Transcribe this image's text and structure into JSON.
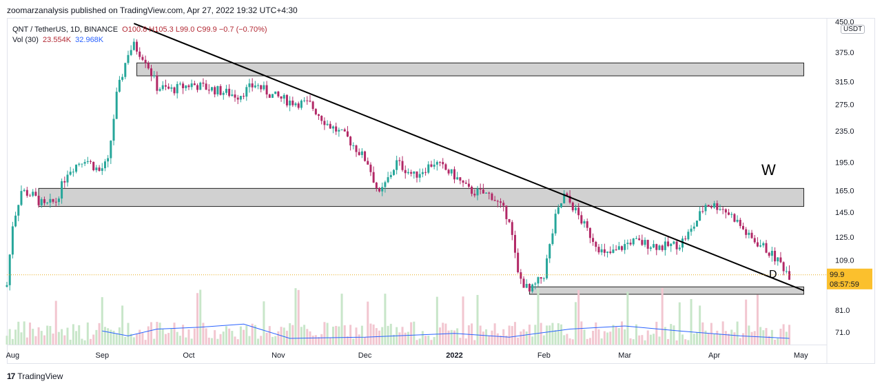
{
  "header": {
    "published_by": "zoomarzanalysis published on TradingView.com, Apr 27, 2022 19:32 UTC+4:30"
  },
  "legend": {
    "symbol": "QNT / TetherUS, 1D, BINANCE",
    "ohlc": "O100.8  H105.3  L99.0  C99.9  −0.7 (−0.70%)",
    "volume_label": "Vol (30)",
    "volume_value": "23.554K",
    "volume_ma": "32.968K"
  },
  "currency_unit": "USDT",
  "last_price": {
    "value": "99.9",
    "countdown": "08:57:59"
  },
  "annotations": {
    "w_label": "W",
    "d_label": "D"
  },
  "footer": {
    "brand": "TradingView",
    "logo": "17"
  },
  "colors": {
    "up": "#26a69a",
    "down": "#b22866",
    "volume_up": "#c8e6c9",
    "volume_down": "#f2c6d0",
    "ma": "#2962ff",
    "zone": "#d1d1d1"
  },
  "chart_data": {
    "type": "candlestick",
    "x_ticks": [
      "Aug",
      "Sep",
      "Oct",
      "Nov",
      "Dec",
      "2022",
      "Feb",
      "Mar",
      "Apr",
      "May"
    ],
    "y_ticks": [
      450.0,
      375.0,
      315.0,
      275.0,
      235.0,
      195.0,
      165.0,
      145.0,
      125.0,
      109.0,
      81.0,
      71.0
    ],
    "y_tick_labels": [
      "450.0",
      "375.0",
      "315.0",
      "275.0",
      "235.0",
      "195.0",
      "165.0",
      "145.0",
      "125.0",
      "109.0",
      "81.0",
      "71.0"
    ],
    "y_scale": "log",
    "x_range": [
      "2021-07-30",
      "2022-05-10"
    ],
    "y_range": [
      66,
      460
    ],
    "zones": [
      {
        "start": "2021-09-13",
        "end": "2022-05-02",
        "low": 326,
        "high": 352
      },
      {
        "start": "2021-08-10",
        "end": "2022-05-02",
        "low": 150,
        "high": 167
      },
      {
        "start": "2022-01-27",
        "end": "2022-05-02",
        "low": 89,
        "high": 93
      }
    ],
    "trendline": {
      "start": [
        "2021-09-12",
        445
      ],
      "end": [
        "2022-05-02",
        91
      ]
    },
    "anchors": [
      [
        "2021-07-30",
        94
      ],
      [
        "2021-08-01",
        135
      ],
      [
        "2021-08-04",
        165
      ],
      [
        "2021-08-08",
        160
      ],
      [
        "2021-08-12",
        150
      ],
      [
        "2021-08-16",
        155
      ],
      [
        "2021-08-20",
        185
      ],
      [
        "2021-08-26",
        200
      ],
      [
        "2021-08-31",
        185
      ],
      [
        "2021-09-03",
        195
      ],
      [
        "2021-09-06",
        290
      ],
      [
        "2021-09-10",
        375
      ],
      [
        "2021-09-12",
        390
      ],
      [
        "2021-09-16",
        360
      ],
      [
        "2021-09-20",
        305
      ],
      [
        "2021-09-25",
        300
      ],
      [
        "2021-10-02",
        310
      ],
      [
        "2021-10-10",
        300
      ],
      [
        "2021-10-18",
        290
      ],
      [
        "2021-10-24",
        310
      ],
      [
        "2021-10-30",
        290
      ],
      [
        "2021-11-05",
        280
      ],
      [
        "2021-11-12",
        275
      ],
      [
        "2021-11-18",
        245
      ],
      [
        "2021-11-25",
        225
      ],
      [
        "2021-12-02",
        195
      ],
      [
        "2021-12-06",
        160
      ],
      [
        "2021-12-12",
        195
      ],
      [
        "2021-12-18",
        180
      ],
      [
        "2021-12-25",
        195
      ],
      [
        "2022-01-01",
        180
      ],
      [
        "2022-01-06",
        165
      ],
      [
        "2022-01-14",
        160
      ],
      [
        "2022-01-20",
        140
      ],
      [
        "2022-01-23",
        100
      ],
      [
        "2022-01-27",
        90
      ],
      [
        "2022-02-01",
        100
      ],
      [
        "2022-02-05",
        140
      ],
      [
        "2022-02-08",
        160
      ],
      [
        "2022-02-11",
        150
      ],
      [
        "2022-02-16",
        130
      ],
      [
        "2022-02-22",
        112
      ],
      [
        "2022-02-26",
        115
      ],
      [
        "2022-03-03",
        122
      ],
      [
        "2022-03-09",
        120
      ],
      [
        "2022-03-14",
        118
      ],
      [
        "2022-03-20",
        120
      ],
      [
        "2022-03-24",
        130
      ],
      [
        "2022-03-29",
        152
      ],
      [
        "2022-04-03",
        150
      ],
      [
        "2022-04-08",
        140
      ],
      [
        "2022-04-13",
        125
      ],
      [
        "2022-04-18",
        118
      ],
      [
        "2022-04-24",
        107
      ],
      [
        "2022-04-27",
        99.9
      ]
    ],
    "volume_ma": [
      [
        "2021-09-01",
        0.22
      ],
      [
        "2021-09-10",
        0.14
      ],
      [
        "2021-09-20",
        0.25
      ],
      [
        "2021-10-05",
        0.28
      ],
      [
        "2021-10-20",
        0.33
      ],
      [
        "2021-11-05",
        0.1
      ],
      [
        "2021-12-01",
        0.12
      ],
      [
        "2022-01-01",
        0.18
      ],
      [
        "2022-01-20",
        0.12
      ],
      [
        "2022-02-10",
        0.25
      ],
      [
        "2022-03-01",
        0.3
      ],
      [
        "2022-03-20",
        0.22
      ],
      [
        "2022-04-10",
        0.14
      ],
      [
        "2022-04-27",
        0.1
      ]
    ]
  }
}
